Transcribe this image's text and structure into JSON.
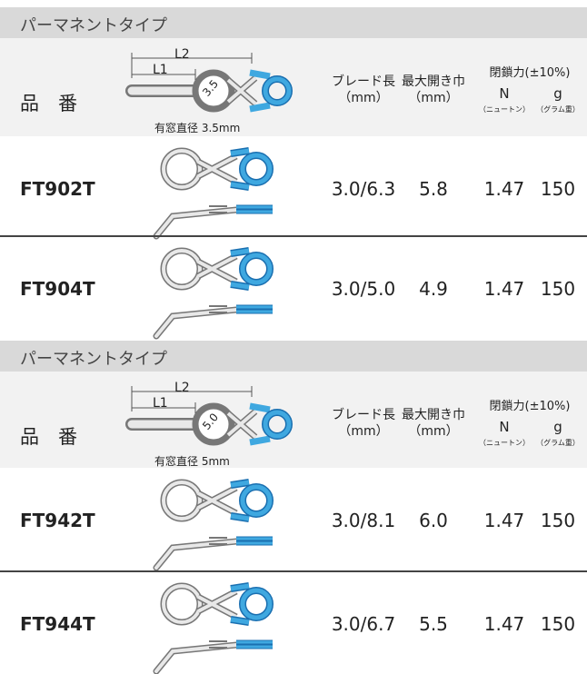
{
  "sections": [
    {
      "title": "パーマネントタイプ",
      "header": {
        "part_no": "品　番",
        "dim_l2": "L2",
        "dim_l1": "L1",
        "window": "3.5",
        "window_caption": "有窓直径 3.5mm",
        "blade": "ブレード長",
        "blade_unit": "（mm）",
        "open": "最大開き巾",
        "open_unit": "（mm）",
        "force": "閉鎖力(±10%)",
        "n": "N",
        "n_note": "（ニュートン）",
        "g": "g",
        "g_note": "（グラム重）"
      },
      "rows": [
        [
          "FT902T",
          "3.0/6.3",
          "5.8",
          "1.47",
          "150"
        ],
        [
          "FT904T",
          "3.0/5.0",
          "4.9",
          "1.47",
          "150"
        ]
      ]
    },
    {
      "title": "パーマネントタイプ",
      "header": {
        "part_no": "品　番",
        "dim_l2": "L2",
        "dim_l1": "L1",
        "window": "5.0",
        "window_caption": "有窓直径 5mm",
        "blade": "ブレード長",
        "blade_unit": "（mm）",
        "open": "最大開き巾",
        "open_unit": "（mm）",
        "force": "閉鎖力(±10%)",
        "n": "N",
        "n_note": "（ニュートン）",
        "g": "g",
        "g_note": "（グラム重）"
      },
      "rows": [
        [
          "FT942T",
          "3.0/8.1",
          "6.0",
          "1.47",
          "150"
        ],
        [
          "FT944T",
          "3.0/6.7",
          "5.5",
          "1.47",
          "150"
        ]
      ]
    }
  ]
}
